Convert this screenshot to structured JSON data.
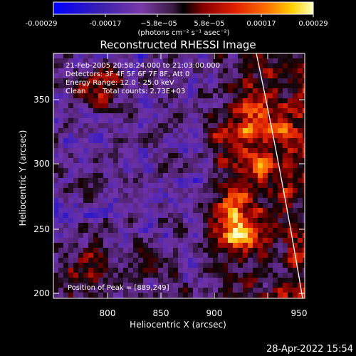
{
  "colorbar": {
    "ticks": [
      "-0.00029",
      "-0.00017",
      "−5.8e−05",
      "5.8e−05",
      "0.00017",
      "0.00029"
    ],
    "units": "(photons cm⁻² s⁻¹ asec⁻²)"
  },
  "title": "Reconstructed RHESSI Image",
  "info": {
    "line1": "21-Feb-2005 20:58:24.000 to 21:03:00.000",
    "line2": "Detectors: 3F 4F 5F 6F 7F 8F, Att 0",
    "line3": "Energy Range: 12.0 - 25.0 keV",
    "line4_a": "Clean",
    "line4_b": "Total counts: 2.73E+03"
  },
  "peak_label": "Position of Peak = [889,249]",
  "axes": {
    "xlabel": "Heliocentric X (arcsec)",
    "ylabel": "Heliocentric Y (arcsec)",
    "xticks": [
      "800",
      "850",
      "900",
      "950"
    ],
    "yticks": [
      "350",
      "300",
      "250",
      "200"
    ]
  },
  "footer_date": "28-Apr-2022 15:54",
  "colors": {
    "background": "#000000",
    "cmap": [
      "#0000ff",
      "#4a1c9c",
      "#7a3aa8",
      "#9b5fb0",
      "#000000",
      "#8a0000",
      "#d41a00",
      "#ff5a00",
      "#ffb000",
      "#ffff60",
      "#ffffff"
    ]
  }
}
